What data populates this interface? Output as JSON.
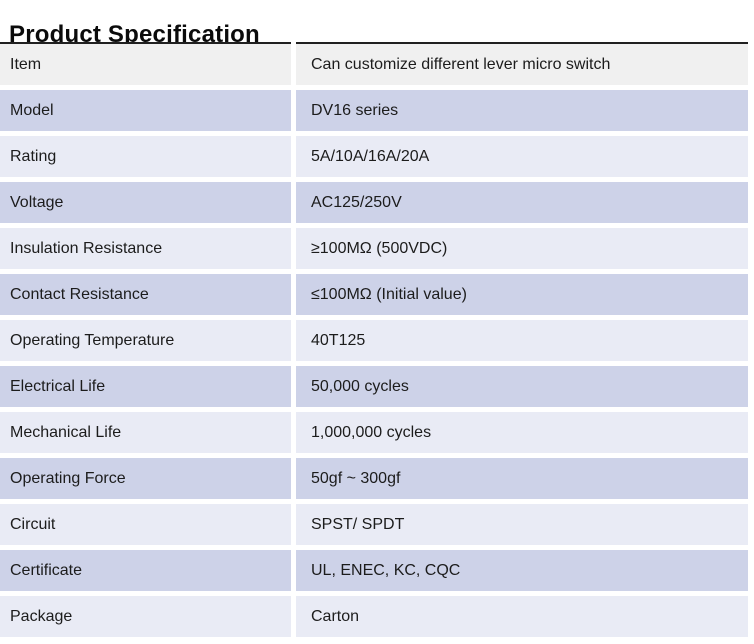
{
  "title": "Product Specification",
  "table": {
    "columns": [
      "label",
      "value"
    ],
    "rows": [
      {
        "label": "Item",
        "value": "Can customize different lever micro switch"
      },
      {
        "label": "Model",
        "value": "DV16 series"
      },
      {
        "label": "Rating",
        "value": "5A/10A/16A/20A"
      },
      {
        "label": "Voltage",
        "value": "AC125/250V"
      },
      {
        "label": "Insulation Resistance",
        "value": "≥100MΩ (500VDC)"
      },
      {
        "label": "Contact Resistance",
        "value": "≤100MΩ (Initial value)"
      },
      {
        "label": "Operating Temperature",
        "value": "40T125"
      },
      {
        "label": "Electrical Life",
        "value": "50,000 cycles"
      },
      {
        "label": "Mechanical Life",
        "value": "1,000,000 cycles"
      },
      {
        "label": "Operating Force",
        "value": "50gf ~ 300gf"
      },
      {
        "label": "Circuit",
        "value": "SPST/ SPDT"
      },
      {
        "label": "Certificate",
        "value": "UL, ENEC, KC, CQC"
      },
      {
        "label": "Package",
        "value": "Carton"
      }
    ],
    "colors": {
      "first_row_bg": "#f0f0f0",
      "alt_row_bg": "#cdd2e8",
      "light_row_bg": "#e9ebf5",
      "top_border": "#202020",
      "text": "#1c1c1c"
    }
  }
}
